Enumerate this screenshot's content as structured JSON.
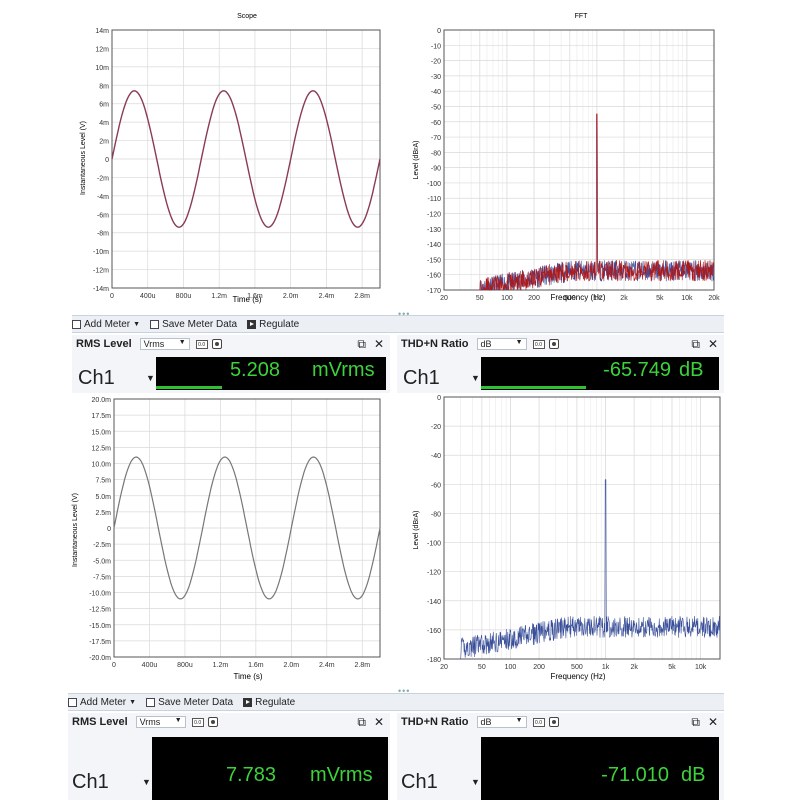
{
  "top_scope": {
    "title": "Scope",
    "ylabel": "Instantaneous Level (V)",
    "xlabel": "Time (s)",
    "yticks": [
      "14m",
      "12m",
      "10m",
      "8m",
      "6m",
      "4m",
      "2m",
      "0",
      "-2m",
      "-4m",
      "-6m",
      "-8m",
      "-10m",
      "-12m",
      "-14m"
    ],
    "xticks": [
      "0",
      "400u",
      "800u",
      "1.2m",
      "1.6m",
      "2.0m",
      "2.4m",
      "2.8m"
    ],
    "color": "#8a3a55"
  },
  "top_fft": {
    "title": "FFT",
    "ylabel": "Level (dBrA)",
    "xlabel": "Frequency (Hz)",
    "yticks": [
      "0",
      "-10",
      "-20",
      "-30",
      "-40",
      "-50",
      "-60",
      "-70",
      "-80",
      "-90",
      "-100",
      "-110",
      "-120",
      "-130",
      "-140",
      "-150",
      "-160",
      "-170"
    ],
    "xticks": [
      "20",
      "50",
      "100",
      "200",
      "500",
      "1k",
      "2k",
      "5k",
      "10k",
      "20k"
    ],
    "color": "#b01818",
    "color2": "#3a4fa0"
  },
  "toolbar1": {
    "add_meter": "Add Meter",
    "save_meter": "Save Meter Data",
    "regulate": "Regulate"
  },
  "meters1": {
    "rms": {
      "title": "RMS Level",
      "unit_select": "Vrms",
      "channel": "Ch1",
      "value": "5.208",
      "unit": "mVrms"
    },
    "thd": {
      "title": "THD+N Ratio",
      "unit_select": "dB",
      "channel": "Ch1",
      "value": "-65.749",
      "unit": "dB"
    }
  },
  "bottom_scope": {
    "ylabel": "Instantaneous Level (V)",
    "xlabel": "Time (s)",
    "yticks": [
      "20.0m",
      "17.5m",
      "15.0m",
      "12.5m",
      "10.0m",
      "7.5m",
      "5.0m",
      "2.5m",
      "0",
      "-2.5m",
      "-5.0m",
      "-7.5m",
      "-10.0m",
      "-12.5m",
      "-15.0m",
      "-17.5m",
      "-20.0m"
    ],
    "xticks": [
      "0",
      "400u",
      "800u",
      "1.2m",
      "1.6m",
      "2.0m",
      "2.4m",
      "2.8m"
    ],
    "color": "#777777"
  },
  "bottom_fft": {
    "ylabel": "Level (dBrA)",
    "xlabel": "Frequency (Hz)",
    "yticks": [
      "0",
      "-20",
      "-40",
      "-60",
      "-80",
      "-100",
      "-120",
      "-140",
      "-160",
      "-180"
    ],
    "xticks": [
      "20",
      "50",
      "100",
      "200",
      "500",
      "1k",
      "2k",
      "5k",
      "10k"
    ],
    "color": "#3a4f9a"
  },
  "toolbar2": {
    "add_meter": "Add Meter",
    "save_meter": "Save Meter Data",
    "regulate": "Regulate"
  },
  "meters2": {
    "rms": {
      "title": "RMS Level",
      "unit_select": "Vrms",
      "channel": "Ch1",
      "value": "7.783",
      "unit": "mVrms"
    },
    "thd": {
      "title": "THD+N Ratio",
      "unit_select": "dB",
      "channel": "Ch1",
      "value": "-71.010",
      "unit": "dB"
    }
  },
  "icons": {
    "popout": "popout-icon",
    "close": "close-icon",
    "gear": "gear-icon"
  }
}
